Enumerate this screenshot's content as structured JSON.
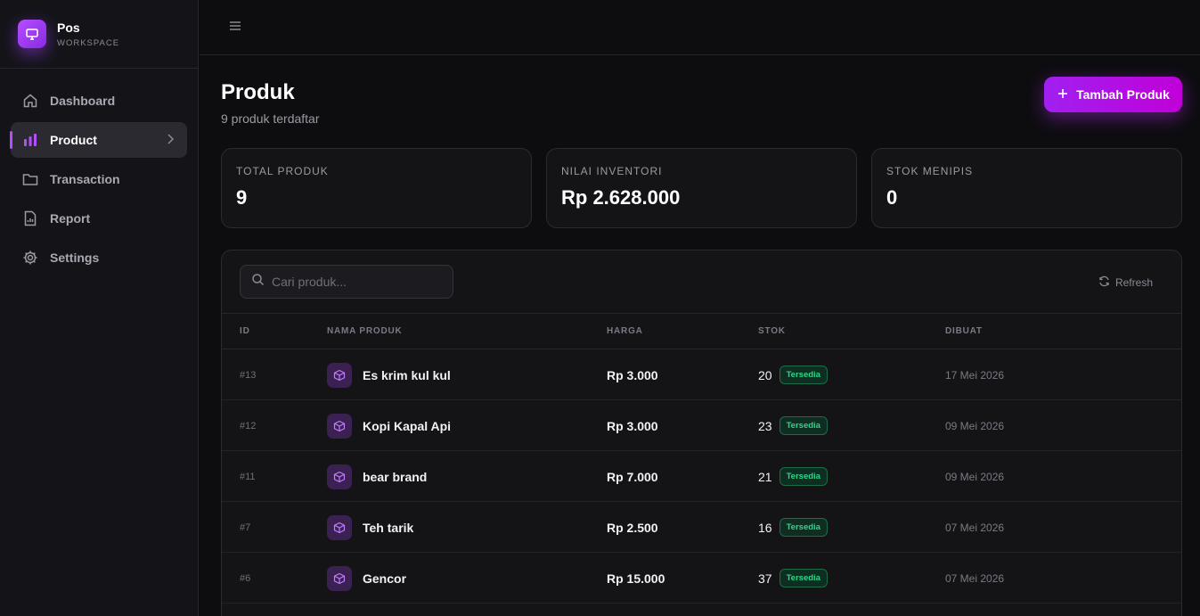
{
  "brand": {
    "name": "Pos",
    "subtitle": "WORKSPACE",
    "logo_icon": "monitor-icon"
  },
  "sidebar": {
    "items": [
      {
        "label": "Dashboard",
        "icon": "home-icon",
        "active": false
      },
      {
        "label": "Product",
        "icon": "bar-chart-icon",
        "active": true
      },
      {
        "label": "Transaction",
        "icon": "folder-icon",
        "active": false
      },
      {
        "label": "Report",
        "icon": "document-icon",
        "active": false
      },
      {
        "label": "Settings",
        "icon": "gear-icon",
        "active": false
      }
    ]
  },
  "topbar": {
    "menu_icon": "hamburger-icon"
  },
  "page": {
    "title": "Produk",
    "subtitle": "9 produk terdaftar",
    "add_button": "Tambah Produk"
  },
  "stats": [
    {
      "label": "TOTAL PRODUK",
      "value": "9"
    },
    {
      "label": "NILAI INVENTORI",
      "value": "Rp 2.628.000"
    },
    {
      "label": "STOK MENIPIS",
      "value": "0"
    }
  ],
  "search": {
    "placeholder": "Cari produk..."
  },
  "refresh_label": "Refresh",
  "table": {
    "headers": [
      "ID",
      "NAMA PRODUK",
      "HARGA",
      "STOK",
      "DIBUAT"
    ],
    "rows": [
      {
        "id": "#13",
        "name": "Es krim kul kul",
        "price": "Rp 3.000",
        "stock": "20",
        "status": "Tersedia",
        "created": "17 Mei 2026"
      },
      {
        "id": "#12",
        "name": "Kopi Kapal Api",
        "price": "Rp 3.000",
        "stock": "23",
        "status": "Tersedia",
        "created": "09 Mei 2026"
      },
      {
        "id": "#11",
        "name": "bear brand",
        "price": "Rp 7.000",
        "stock": "21",
        "status": "Tersedia",
        "created": "09 Mei 2026"
      },
      {
        "id": "#7",
        "name": "Teh tarik",
        "price": "Rp 2.500",
        "stock": "16",
        "status": "Tersedia",
        "created": "07 Mei 2026"
      },
      {
        "id": "#6",
        "name": "Gencor",
        "price": "Rp 15.000",
        "stock": "37",
        "status": "Tersedia",
        "created": "07 Mei 2026"
      }
    ]
  },
  "colors": {
    "accent": "#b44dff",
    "success": "#2fd58a",
    "background": "#0d0d10"
  }
}
